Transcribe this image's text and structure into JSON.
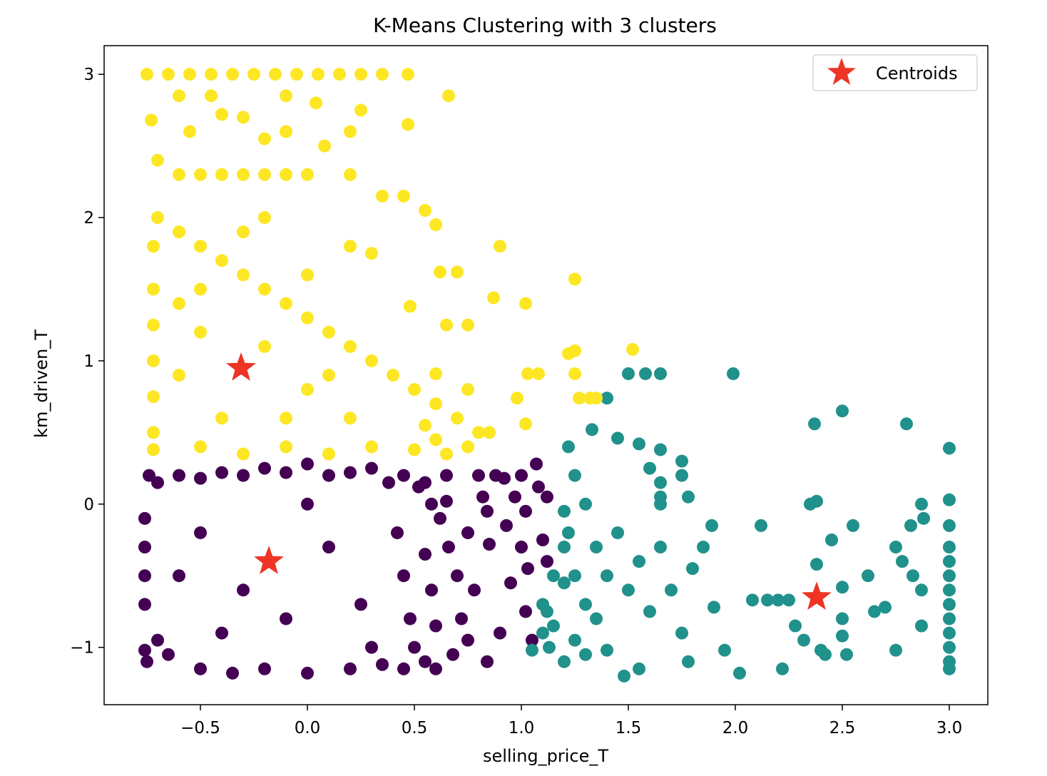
{
  "chart_data": {
    "type": "scatter",
    "title": "K-Means Clustering with 3 clusters",
    "xlabel": "selling_price_T",
    "ylabel": "km_driven_T",
    "xlim": [
      -0.95,
      3.18
    ],
    "ylim": [
      -1.4,
      3.2
    ],
    "xticks": [
      -0.5,
      0.0,
      0.5,
      1.0,
      1.5,
      2.0,
      2.5,
      3.0
    ],
    "xtick_labels": [
      "−0.5",
      "0.0",
      "0.5",
      "1.0",
      "1.5",
      "2.0",
      "2.5",
      "3.0"
    ],
    "yticks": [
      -1,
      0,
      1,
      2,
      3
    ],
    "ytick_labels": [
      "−1",
      "0",
      "1",
      "2",
      "3"
    ],
    "grid": false,
    "legend": {
      "placement": "top-right",
      "entries": [
        "Centroids"
      ]
    },
    "colors": {
      "cluster_0": "#440154",
      "cluster_1": "#21918c",
      "cluster_2": "#fde725",
      "centroid": "#ee3424"
    },
    "series": [
      {
        "cluster": 0,
        "color": "#440154",
        "points": [
          [
            -0.74,
            0.2
          ],
          [
            -0.7,
            0.15
          ],
          [
            -0.6,
            0.2
          ],
          [
            -0.5,
            0.18
          ],
          [
            -0.4,
            0.22
          ],
          [
            -0.3,
            0.2
          ],
          [
            -0.2,
            0.25
          ],
          [
            -0.1,
            0.22
          ],
          [
            0.0,
            0.28
          ],
          [
            0.1,
            0.2
          ],
          [
            0.2,
            0.22
          ],
          [
            0.3,
            0.25
          ],
          [
            0.38,
            0.15
          ],
          [
            0.45,
            0.2
          ],
          [
            0.55,
            0.15
          ],
          [
            0.65,
            0.2
          ],
          [
            -0.76,
            -0.1
          ],
          [
            -0.76,
            -0.3
          ],
          [
            -0.76,
            -0.5
          ],
          [
            -0.76,
            -0.7
          ],
          [
            -0.76,
            -1.02
          ],
          [
            -0.75,
            -1.1
          ],
          [
            -0.7,
            -0.95
          ],
          [
            -0.65,
            -1.05
          ],
          [
            -0.5,
            -1.15
          ],
          [
            -0.35,
            -1.18
          ],
          [
            -0.2,
            -1.15
          ],
          [
            0.0,
            -1.18
          ],
          [
            0.2,
            -1.15
          ],
          [
            0.35,
            -1.12
          ],
          [
            0.45,
            -1.15
          ],
          [
            0.55,
            -1.1
          ],
          [
            0.6,
            -1.15
          ],
          [
            0.42,
            -0.2
          ],
          [
            0.45,
            -0.5
          ],
          [
            0.48,
            -0.8
          ],
          [
            0.5,
            -1.0
          ],
          [
            0.55,
            -0.35
          ],
          [
            0.58,
            -0.6
          ],
          [
            0.6,
            -0.85
          ],
          [
            0.62,
            -0.1
          ],
          [
            0.65,
            0.02
          ],
          [
            0.66,
            -0.3
          ],
          [
            0.7,
            -0.5
          ],
          [
            0.72,
            -0.8
          ],
          [
            0.75,
            -0.95
          ],
          [
            0.68,
            -1.05
          ],
          [
            0.8,
            0.2
          ],
          [
            0.82,
            0.05
          ],
          [
            0.84,
            -0.05
          ],
          [
            0.85,
            -0.28
          ],
          [
            0.88,
            0.2
          ],
          [
            0.92,
            0.18
          ],
          [
            0.93,
            -0.15
          ],
          [
            0.95,
            -0.55
          ],
          [
            0.97,
            0.05
          ],
          [
            1.0,
            0.2
          ],
          [
            1.0,
            -0.3
          ],
          [
            1.02,
            -0.05
          ],
          [
            1.03,
            -0.45
          ],
          [
            1.02,
            -0.75
          ],
          [
            1.05,
            -0.95
          ],
          [
            1.07,
            0.28
          ],
          [
            1.08,
            0.12
          ],
          [
            1.1,
            -0.25
          ],
          [
            1.12,
            0.05
          ],
          [
            1.12,
            -0.4
          ],
          [
            0.84,
            -1.1
          ],
          [
            0.9,
            -0.9
          ],
          [
            0.78,
            -0.6
          ],
          [
            0.75,
            -0.2
          ],
          [
            0.58,
            0.0
          ],
          [
            0.52,
            0.12
          ],
          [
            -0.18,
            -0.4
          ],
          [
            -0.5,
            -0.2
          ],
          [
            -0.3,
            -0.6
          ],
          [
            -0.1,
            -0.8
          ],
          [
            0.1,
            -0.3
          ],
          [
            0.25,
            -0.7
          ],
          [
            -0.6,
            -0.5
          ],
          [
            0.0,
            0.0
          ],
          [
            -0.4,
            -0.9
          ],
          [
            0.3,
            -1.0
          ]
        ]
      },
      {
        "cluster": 1,
        "color": "#21918c",
        "points": [
          [
            1.22,
            0.4
          ],
          [
            1.25,
            0.2
          ],
          [
            1.3,
            0.0
          ],
          [
            1.33,
            0.52
          ],
          [
            1.4,
            0.74
          ],
          [
            1.45,
            0.46
          ],
          [
            1.5,
            0.91
          ],
          [
            1.58,
            0.91
          ],
          [
            1.65,
            0.91
          ],
          [
            1.55,
            0.42
          ],
          [
            1.6,
            0.25
          ],
          [
            1.65,
            0.38
          ],
          [
            1.65,
            0.15
          ],
          [
            1.65,
            0.05
          ],
          [
            1.65,
            0.0
          ],
          [
            1.99,
            0.91
          ],
          [
            1.2,
            -0.05
          ],
          [
            1.2,
            -0.3
          ],
          [
            1.25,
            -0.5
          ],
          [
            1.3,
            -0.7
          ],
          [
            1.35,
            -0.3
          ],
          [
            1.4,
            -0.5
          ],
          [
            1.45,
            -0.2
          ],
          [
            1.5,
            -0.6
          ],
          [
            1.55,
            -0.4
          ],
          [
            1.6,
            -0.75
          ],
          [
            1.65,
            -0.3
          ],
          [
            1.7,
            -0.6
          ],
          [
            1.75,
            -0.9
          ],
          [
            1.78,
            -1.1
          ],
          [
            1.8,
            -0.45
          ],
          [
            1.85,
            -0.3
          ],
          [
            1.9,
            -0.72
          ],
          [
            1.95,
            -1.02
          ],
          [
            1.89,
            -0.15
          ],
          [
            1.1,
            -0.7
          ],
          [
            1.1,
            -0.9
          ],
          [
            1.12,
            -0.75
          ],
          [
            1.15,
            -0.85
          ],
          [
            1.13,
            -1.0
          ],
          [
            1.05,
            -1.02
          ],
          [
            1.2,
            -1.1
          ],
          [
            1.25,
            -0.95
          ],
          [
            1.3,
            -1.05
          ],
          [
            1.35,
            -0.8
          ],
          [
            1.4,
            -1.02
          ],
          [
            1.48,
            -1.2
          ],
          [
            1.55,
            -1.15
          ],
          [
            1.2,
            -0.55
          ],
          [
            1.22,
            -0.2
          ],
          [
            1.15,
            -0.5
          ],
          [
            1.75,
            0.3
          ],
          [
            1.75,
            0.2
          ],
          [
            1.78,
            0.05
          ],
          [
            2.02,
            -1.18
          ],
          [
            2.08,
            -0.67
          ],
          [
            2.15,
            -0.67
          ],
          [
            2.2,
            -0.67
          ],
          [
            2.22,
            -1.15
          ],
          [
            2.25,
            -0.67
          ],
          [
            2.28,
            -0.85
          ],
          [
            2.32,
            -0.95
          ],
          [
            2.35,
            0.0
          ],
          [
            2.38,
            0.02
          ],
          [
            2.37,
            0.56
          ],
          [
            2.38,
            -0.42
          ],
          [
            2.4,
            -1.02
          ],
          [
            2.42,
            -1.05
          ],
          [
            2.45,
            -0.25
          ],
          [
            2.5,
            0.65
          ],
          [
            2.5,
            -0.58
          ],
          [
            2.5,
            -0.8
          ],
          [
            2.5,
            -0.92
          ],
          [
            2.52,
            -1.05
          ],
          [
            2.55,
            -0.15
          ],
          [
            2.62,
            -0.5
          ],
          [
            2.65,
            -0.75
          ],
          [
            2.7,
            -0.72
          ],
          [
            2.75,
            -0.3
          ],
          [
            2.78,
            -0.4
          ],
          [
            2.75,
            -1.02
          ],
          [
            2.8,
            0.56
          ],
          [
            2.82,
            -0.15
          ],
          [
            2.83,
            -0.5
          ],
          [
            2.87,
            0.0
          ],
          [
            2.88,
            -0.1
          ],
          [
            2.87,
            -0.6
          ],
          [
            2.87,
            -0.85
          ],
          [
            2.12,
            -0.15
          ],
          [
            3.0,
            0.39
          ],
          [
            3.0,
            0.03
          ],
          [
            3.0,
            -0.15
          ],
          [
            3.0,
            -0.3
          ],
          [
            3.0,
            -0.4
          ],
          [
            3.0,
            -0.5
          ],
          [
            3.0,
            -0.6
          ],
          [
            3.0,
            -0.7
          ],
          [
            3.0,
            -0.8
          ],
          [
            3.0,
            -0.9
          ],
          [
            3.0,
            -1.0
          ],
          [
            3.0,
            -1.1
          ],
          [
            3.0,
            -1.15
          ]
        ]
      },
      {
        "cluster": 2,
        "color": "#fde725",
        "points": [
          [
            -0.75,
            3.0
          ],
          [
            -0.65,
            3.0
          ],
          [
            -0.55,
            3.0
          ],
          [
            -0.45,
            3.0
          ],
          [
            -0.35,
            3.0
          ],
          [
            -0.25,
            3.0
          ],
          [
            -0.15,
            3.0
          ],
          [
            -0.05,
            3.0
          ],
          [
            0.05,
            3.0
          ],
          [
            0.15,
            3.0
          ],
          [
            0.25,
            3.0
          ],
          [
            0.35,
            3.0
          ],
          [
            0.47,
            3.0
          ],
          [
            -0.6,
            2.85
          ],
          [
            -0.45,
            2.85
          ],
          [
            -0.1,
            2.85
          ],
          [
            0.04,
            2.8
          ],
          [
            0.66,
            2.85
          ],
          [
            -0.4,
            2.72
          ],
          [
            -0.3,
            2.7
          ],
          [
            0.25,
            2.75
          ],
          [
            0.47,
            2.65
          ],
          [
            -0.73,
            2.68
          ],
          [
            -0.55,
            2.6
          ],
          [
            -0.2,
            2.55
          ],
          [
            -0.1,
            2.6
          ],
          [
            0.2,
            2.6
          ],
          [
            -0.7,
            2.4
          ],
          [
            -0.6,
            2.3
          ],
          [
            -0.5,
            2.3
          ],
          [
            -0.4,
            2.3
          ],
          [
            -0.3,
            2.3
          ],
          [
            -0.2,
            2.3
          ],
          [
            -0.1,
            2.3
          ],
          [
            0.0,
            2.3
          ],
          [
            0.08,
            2.5
          ],
          [
            0.2,
            2.3
          ],
          [
            0.35,
            2.15
          ],
          [
            0.45,
            2.15
          ],
          [
            0.55,
            2.05
          ],
          [
            0.6,
            1.95
          ],
          [
            0.9,
            1.8
          ],
          [
            0.2,
            1.8
          ],
          [
            0.3,
            1.75
          ],
          [
            -0.7,
            2.0
          ],
          [
            -0.6,
            1.9
          ],
          [
            -0.5,
            1.8
          ],
          [
            -0.4,
            1.7
          ],
          [
            -0.3,
            1.6
          ],
          [
            -0.2,
            1.5
          ],
          [
            -0.1,
            1.4
          ],
          [
            0.0,
            1.3
          ],
          [
            0.1,
            1.2
          ],
          [
            0.2,
            1.1
          ],
          [
            0.3,
            1.0
          ],
          [
            0.4,
            0.9
          ],
          [
            0.5,
            0.8
          ],
          [
            0.6,
            0.7
          ],
          [
            0.7,
            0.6
          ],
          [
            0.8,
            0.5
          ],
          [
            0.62,
            1.62
          ],
          [
            0.7,
            1.62
          ],
          [
            0.87,
            1.44
          ],
          [
            1.02,
            1.4
          ],
          [
            1.25,
            1.57
          ],
          [
            0.48,
            1.38
          ],
          [
            0.65,
            1.25
          ],
          [
            0.75,
            1.25
          ],
          [
            1.22,
            1.05
          ],
          [
            1.25,
            1.07
          ],
          [
            1.52,
            1.08
          ],
          [
            1.03,
            0.91
          ],
          [
            1.08,
            0.91
          ],
          [
            1.25,
            0.91
          ],
          [
            0.6,
            0.91
          ],
          [
            0.75,
            0.8
          ],
          [
            0.98,
            0.74
          ],
          [
            1.27,
            0.74
          ],
          [
            1.32,
            0.74
          ],
          [
            1.35,
            0.74
          ],
          [
            0.55,
            0.55
          ],
          [
            0.6,
            0.45
          ],
          [
            0.65,
            0.35
          ],
          [
            0.75,
            0.4
          ],
          [
            0.85,
            0.5
          ],
          [
            1.02,
            0.56
          ],
          [
            -0.72,
            0.5
          ],
          [
            -0.72,
            0.75
          ],
          [
            -0.72,
            1.0
          ],
          [
            -0.72,
            1.25
          ],
          [
            -0.72,
            1.5
          ],
          [
            -0.72,
            1.8
          ],
          [
            -0.72,
            0.38
          ],
          [
            -0.5,
            0.4
          ],
          [
            -0.3,
            0.35
          ],
          [
            -0.1,
            0.4
          ],
          [
            0.1,
            0.35
          ],
          [
            0.3,
            0.4
          ],
          [
            0.5,
            0.38
          ],
          [
            -0.31,
            0.95
          ],
          [
            -0.5,
            1.2
          ],
          [
            -0.2,
            1.1
          ],
          [
            -0.6,
            0.9
          ],
          [
            -0.4,
            0.6
          ],
          [
            0.0,
            0.8
          ],
          [
            -0.1,
            0.6
          ],
          [
            0.2,
            0.6
          ],
          [
            0.1,
            0.9
          ],
          [
            -0.5,
            1.5
          ],
          [
            -0.3,
            1.9
          ],
          [
            -0.6,
            1.4
          ],
          [
            -0.2,
            2.0
          ],
          [
            0.0,
            1.6
          ]
        ]
      }
    ],
    "centroids": [
      {
        "x": -0.31,
        "y": 0.95
      },
      {
        "x": -0.18,
        "y": -0.4
      },
      {
        "x": 2.38,
        "y": -0.65
      }
    ]
  }
}
